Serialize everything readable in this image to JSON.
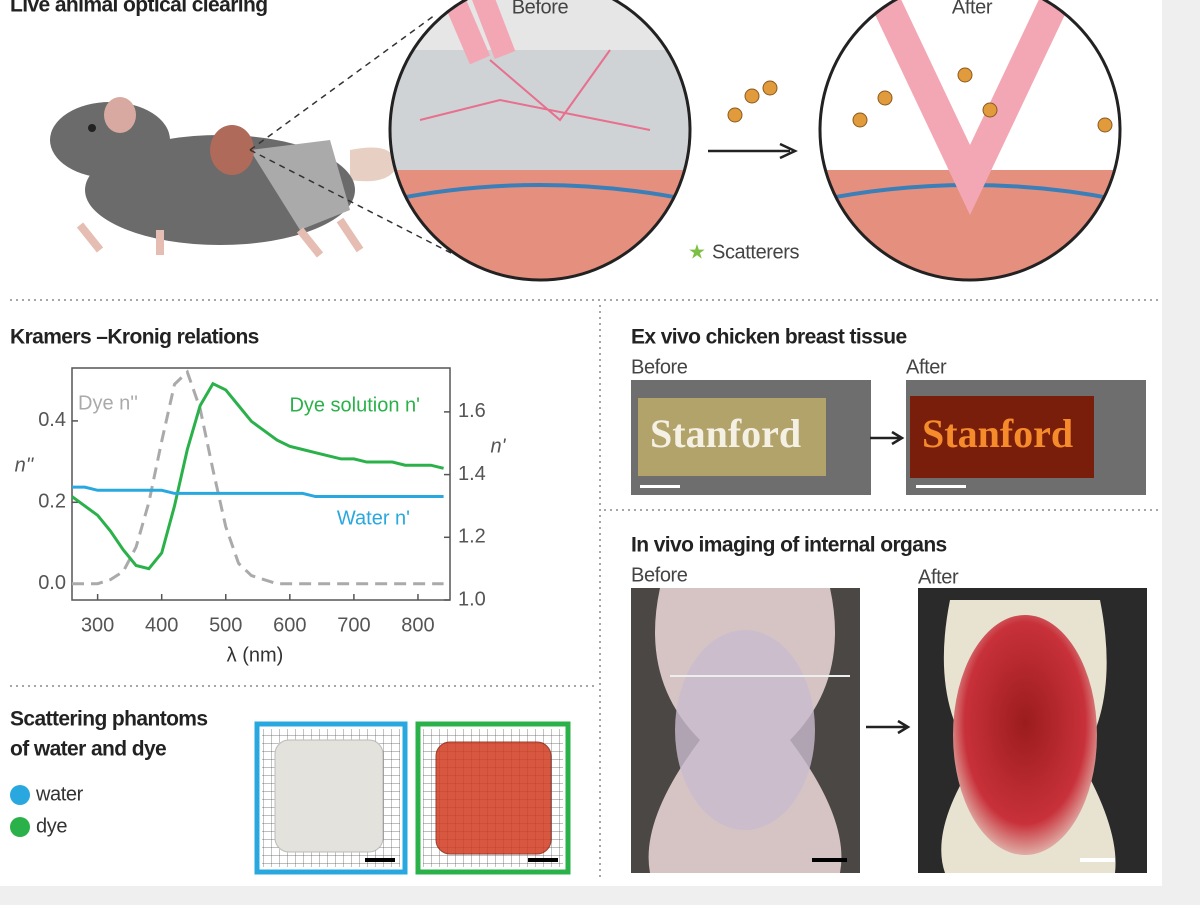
{
  "top": {
    "title": "Live animal optical clearing",
    "before": "Before",
    "after": "After",
    "legend": "Scatterers"
  },
  "chart_data": {
    "type": "line",
    "title": "Kramers –Kronig relations",
    "x_label": "λ (nm)",
    "y_label": "n''",
    "y2_label": "n'",
    "x": [
      260,
      280,
      300,
      320,
      340,
      360,
      380,
      400,
      420,
      440,
      460,
      480,
      500,
      520,
      540,
      560,
      580,
      600,
      620,
      640,
      660,
      680,
      700,
      720,
      740,
      760,
      780,
      800,
      820,
      840
    ],
    "series": [
      {
        "name": "Dye n''",
        "color": "#aaaaaa",
        "dashed": true,
        "values": [
          0,
          0,
          0,
          0.01,
          0.03,
          0.09,
          0.2,
          0.35,
          0.49,
          0.52,
          0.43,
          0.28,
          0.14,
          0.05,
          0.02,
          0.01,
          0,
          0,
          0,
          0,
          0,
          0,
          0,
          0,
          0,
          0,
          0,
          0,
          0,
          0
        ]
      },
      {
        "name": "Dye solution n'",
        "color": "#2bb14a",
        "axis": "y2",
        "values": [
          1.33,
          1.3,
          1.27,
          1.22,
          1.16,
          1.11,
          1.1,
          1.15,
          1.3,
          1.48,
          1.62,
          1.69,
          1.67,
          1.62,
          1.57,
          1.54,
          1.51,
          1.49,
          1.48,
          1.47,
          1.46,
          1.45,
          1.45,
          1.44,
          1.44,
          1.44,
          1.43,
          1.43,
          1.43,
          1.42
        ]
      },
      {
        "name": "Water n'",
        "color": "#29a8e0",
        "axis": "y2",
        "values": [
          1.36,
          1.36,
          1.35,
          1.35,
          1.35,
          1.35,
          1.35,
          1.35,
          1.34,
          1.34,
          1.34,
          1.34,
          1.34,
          1.34,
          1.34,
          1.34,
          1.34,
          1.34,
          1.34,
          1.33,
          1.33,
          1.33,
          1.33,
          1.33,
          1.33,
          1.33,
          1.33,
          1.33,
          1.33,
          1.33
        ]
      }
    ],
    "xlim": [
      260,
      850
    ],
    "xticks": [
      300,
      400,
      500,
      600,
      700,
      800
    ],
    "ylim": [
      -0.04,
      0.53
    ],
    "yticks": [
      {
        "value": 0,
        "label": "0.0"
      },
      0.2,
      0.4
    ],
    "y2lim": [
      1.0,
      1.74
    ],
    "y2ticks": [
      {
        "value": 1,
        "label": "1.0"
      },
      1.2,
      1.4,
      1.6
    ],
    "grid": false
  },
  "ex_vivo": {
    "title": "Ex vivo chicken breast tissue",
    "before": "Before",
    "after": "After",
    "sign": "Stanford"
  },
  "in_vivo": {
    "title": "In vivo imaging of internal organs",
    "before": "Before",
    "after": "After"
  },
  "phantoms": {
    "title_lines": [
      "Scattering phantoms",
      "of water and dye"
    ],
    "legend": [
      {
        "name": "water",
        "color": "#29a8e0"
      },
      {
        "name": "dye",
        "color": "#2bb14a"
      }
    ]
  }
}
